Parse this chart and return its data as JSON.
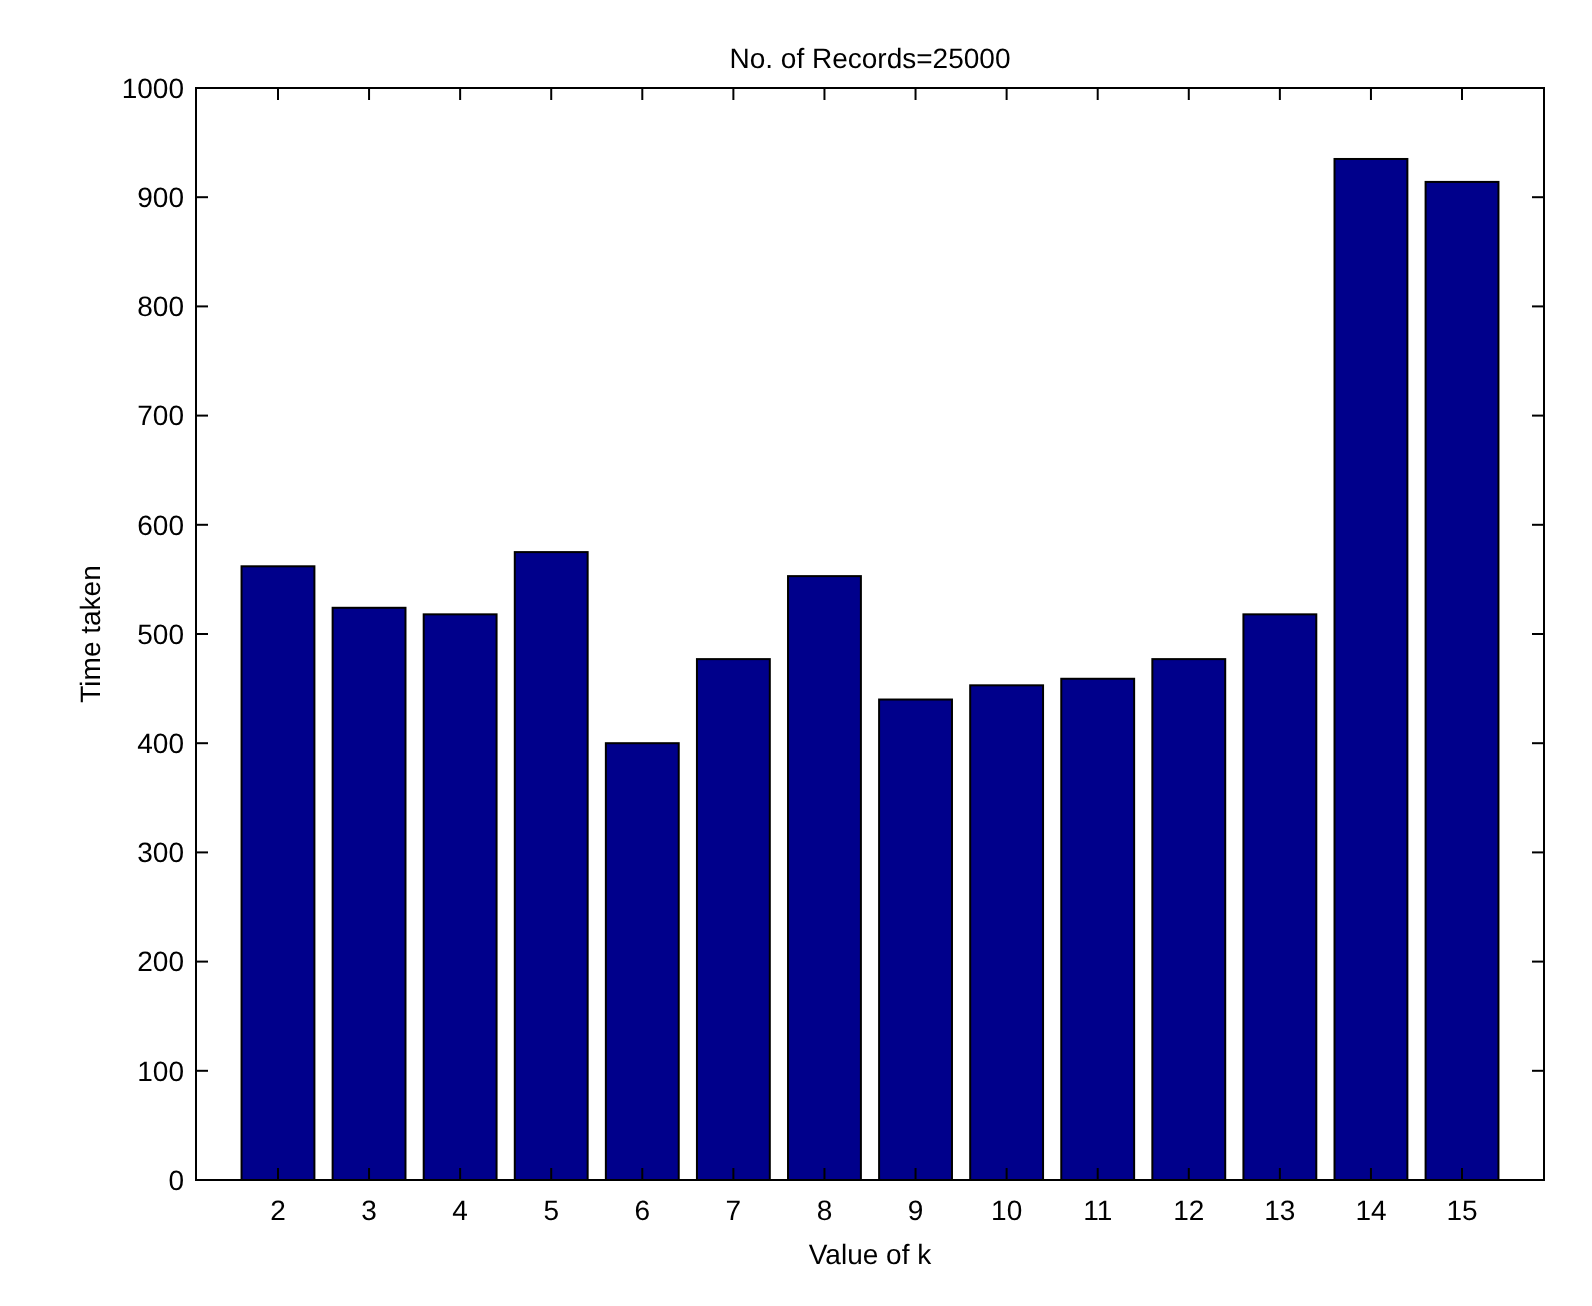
{
  "chart_data": {
    "type": "bar",
    "title": "No. of Records=25000",
    "xlabel": "Value of k",
    "ylabel": "Time taken",
    "categories": [
      "2",
      "3",
      "4",
      "5",
      "6",
      "7",
      "8",
      "9",
      "10",
      "11",
      "12",
      "13",
      "14",
      "15"
    ],
    "values": [
      562,
      524,
      518,
      575,
      400,
      477,
      553,
      440,
      453,
      459,
      477,
      518,
      935,
      914
    ],
    "color": "#00008b",
    "ylim": [
      0,
      1000
    ],
    "yticks": [
      0,
      100,
      200,
      300,
      400,
      500,
      600,
      700,
      800,
      900,
      1000
    ],
    "grid": false
  }
}
